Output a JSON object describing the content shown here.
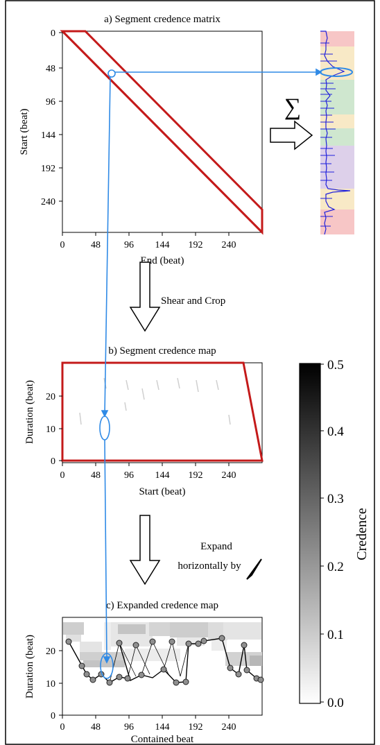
{
  "colors": {
    "frame": "#000000",
    "trapezoid": "#c41a1a",
    "annotation": "#2f8ae6",
    "spectrum_line": "#1f1fdc",
    "bands": [
      "#f7c6c6",
      "#f8e9c6",
      "#cfe7cf",
      "#ddd0ea"
    ]
  },
  "panel_a": {
    "title": "a) Segment credence matrix",
    "xlabel": "End (beat)",
    "ylabel": "Start (beat)",
    "xticks": [
      "0",
      "48",
      "96",
      "144",
      "192",
      "240"
    ],
    "yticks": [
      "0",
      "48",
      "96",
      "144",
      "192",
      "240"
    ]
  },
  "sum_symbol": "∑",
  "arrow1_label": "Shear and Crop",
  "panel_b": {
    "title": "b) Segment credence map",
    "xlabel": "Start (beat)",
    "ylabel": "Duration (beat)",
    "xticks": [
      "0",
      "48",
      "96",
      "144",
      "192",
      "240"
    ],
    "yticks": [
      "0",
      "10",
      "20"
    ]
  },
  "arrow2_label_line1": "Expand",
  "arrow2_label_line2": "horizontally by",
  "panel_c": {
    "title": "c) Expanded credence map",
    "xlabel": "Contained beat",
    "ylabel": "Duration (beat)",
    "xticks": [
      "0",
      "48",
      "96",
      "144",
      "192",
      "240"
    ],
    "yticks": [
      "0",
      "10",
      "20"
    ]
  },
  "colorbar": {
    "label": "Credence",
    "ticks": [
      "0.0",
      "0.1",
      "0.2",
      "0.3",
      "0.4",
      "0.5"
    ]
  },
  "chart_data": {
    "type": "line",
    "xlabel": "Contained beat",
    "ylabel": "Duration (beat)",
    "xlim": [
      0,
      285
    ],
    "ylim": [
      0,
      29
    ],
    "series": [
      {
        "values": [
          [
            10,
            23
          ],
          [
            28,
            12
          ],
          [
            40,
            10
          ],
          [
            52,
            12.5
          ],
          [
            64,
            10
          ],
          [
            76,
            12
          ],
          [
            88,
            11
          ],
          [
            100,
            11.5
          ],
          [
            112,
            10
          ],
          [
            124,
            12
          ],
          [
            136,
            11
          ],
          [
            148,
            10.5
          ],
          [
            160,
            12
          ],
          [
            172,
            11.5
          ],
          [
            184,
            12
          ],
          [
            196,
            11
          ],
          [
            208,
            12
          ],
          [
            220,
            11
          ],
          [
            232,
            12.5
          ],
          [
            244,
            10
          ],
          [
            256,
            11
          ],
          [
            268,
            12
          ],
          [
            280,
            11
          ]
        ]
      },
      {
        "values": [
          [
            76,
            23
          ],
          [
            88,
            21.5
          ],
          [
            100,
            23
          ],
          [
            112,
            22
          ],
          [
            124,
            24
          ],
          [
            136,
            23.5
          ],
          [
            148,
            22
          ],
          [
            160,
            22
          ],
          [
            172,
            22.5
          ],
          [
            196,
            23
          ],
          [
            208,
            22
          ],
          [
            220,
            23
          ],
          [
            232,
            22.5
          ],
          [
            256,
            22
          ],
          [
            268,
            14
          ],
          [
            280,
            11
          ]
        ]
      }
    ]
  }
}
